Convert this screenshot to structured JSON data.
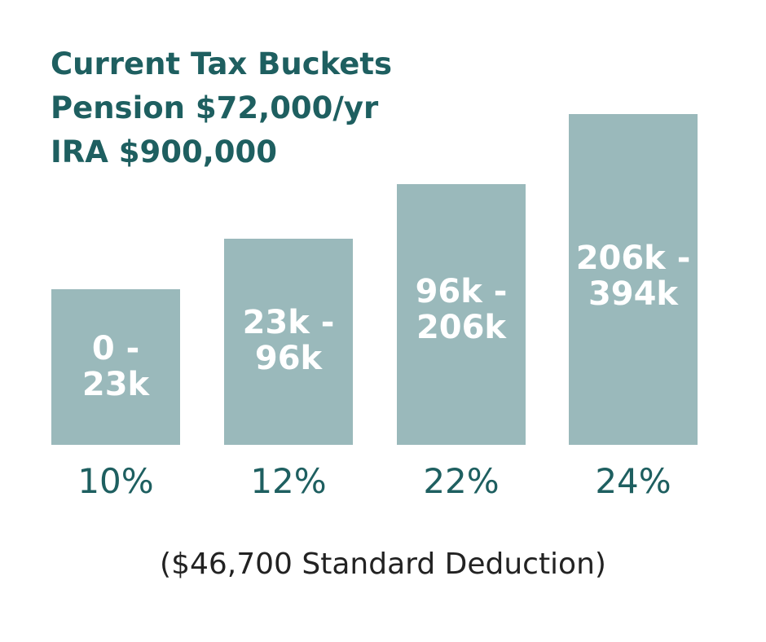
{
  "colors": {
    "bar": "#9ab9bb",
    "title": "#1e5f60",
    "tick": "#1e5f60",
    "bar_text": "#ffffff",
    "footnote": "#222222"
  },
  "chart_data": {
    "type": "bar",
    "title": "Current Tax Buckets",
    "subtitle_lines": [
      "Pension $72,000/yr",
      "IRA $900,000"
    ],
    "categories": [
      "10%",
      "12%",
      "22%",
      "24%"
    ],
    "values": [
      23,
      96,
      206,
      394
    ],
    "unit": "k",
    "bar_labels": [
      [
        "0 -",
        "23k"
      ],
      [
        "23k -",
        "96k"
      ],
      [
        "96k -",
        "206k"
      ],
      [
        "206k -",
        "394k"
      ]
    ],
    "footnote": "($46,700 Standard Deduction)",
    "xlabel": "",
    "ylabel": "",
    "grid": false,
    "legend": "none"
  }
}
